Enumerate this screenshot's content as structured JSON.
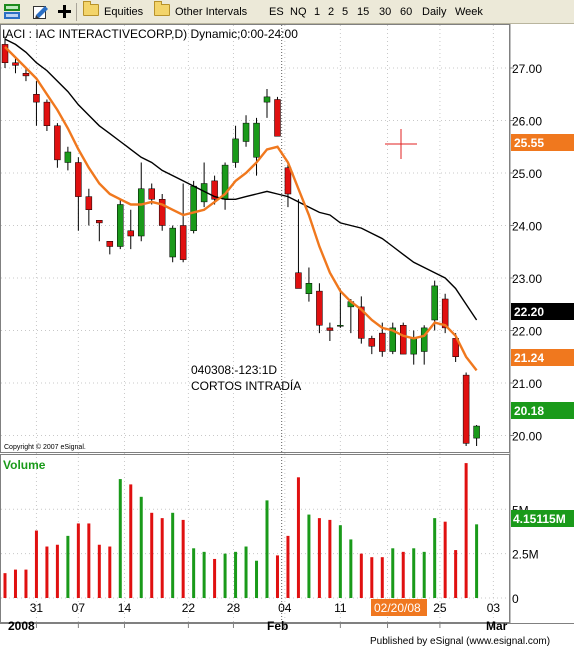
{
  "toolbar": {
    "equities_label": "Equities",
    "intervals_label": "Other Intervals",
    "items": [
      "ES",
      "NQ",
      "1",
      "2",
      "5",
      "15",
      "30",
      "60",
      "Daily",
      "Week"
    ]
  },
  "chart": {
    "title": "IACI : IAC INTERACTIVECORP,D) Dynamic;0:00-24:00",
    "copyright": "Copyright © 2007 eSignal.",
    "annotation_line1": "040308:-123:1D",
    "annotation_line2": "CORTOS INTRADÍA",
    "volume_label": "Volume",
    "published": "Published by eSignal (www.esignal.com)",
    "highlighted_date": "02/20/08",
    "price_badges": [
      {
        "value": "25.55",
        "color": "#f0781e"
      },
      {
        "value": "22.20",
        "color": "#000000"
      },
      {
        "value": "21.24",
        "color": "#f0781e"
      },
      {
        "value": "20.18",
        "color": "#1a9a1a"
      }
    ],
    "volume_badge": {
      "value": "4.15115M",
      "color": "#1a9a1a"
    },
    "up_color": "#1a9a1a",
    "down_color": "#e01010",
    "ma_fast_color": "#f0781e",
    "ma_slow_color": "#000000"
  },
  "chart_data": {
    "type": "candlestick",
    "symbol": "IACI",
    "y_ticks": [
      "20.00",
      "21.00",
      "22.00",
      "23.00",
      "24.00",
      "25.00",
      "26.00",
      "27.00"
    ],
    "ylim": [
      19.8,
      27.8
    ],
    "volume_ticks": [
      "5M",
      "2.5M",
      "0"
    ],
    "volume_ylim": [
      0,
      8
    ],
    "x_tick_labels": [
      "31",
      "07",
      "14",
      "22",
      "28",
      "04",
      "11",
      "02/20/08",
      "25",
      "03"
    ],
    "x_month_labels": [
      "2008",
      "Feb",
      "Mar"
    ],
    "candles": [
      {
        "o": 27.45,
        "h": 27.6,
        "l": 27.0,
        "c": 27.1
      },
      {
        "o": 27.1,
        "h": 27.2,
        "l": 26.9,
        "c": 27.05
      },
      {
        "o": 26.9,
        "h": 27.0,
        "l": 26.75,
        "c": 26.85
      },
      {
        "o": 26.5,
        "h": 26.75,
        "l": 25.9,
        "c": 26.35
      },
      {
        "o": 26.35,
        "h": 26.4,
        "l": 25.8,
        "c": 25.9
      },
      {
        "o": 25.9,
        "h": 25.95,
        "l": 25.1,
        "c": 25.25
      },
      {
        "o": 25.2,
        "h": 25.5,
        "l": 25.05,
        "c": 25.4
      },
      {
        "o": 25.2,
        "h": 25.3,
        "l": 23.9,
        "c": 24.55
      },
      {
        "o": 24.55,
        "h": 24.7,
        "l": 24.0,
        "c": 24.3
      },
      {
        "o": 24.1,
        "h": 24.1,
        "l": 23.7,
        "c": 24.05
      },
      {
        "o": 23.7,
        "h": 23.7,
        "l": 23.45,
        "c": 23.6
      },
      {
        "o": 23.6,
        "h": 24.5,
        "l": 23.55,
        "c": 24.4
      },
      {
        "o": 23.9,
        "h": 24.3,
        "l": 23.55,
        "c": 23.8
      },
      {
        "o": 23.8,
        "h": 25.2,
        "l": 23.7,
        "c": 24.7
      },
      {
        "o": 24.7,
        "h": 24.8,
        "l": 24.4,
        "c": 24.5
      },
      {
        "o": 24.5,
        "h": 24.6,
        "l": 23.9,
        "c": 24.0
      },
      {
        "o": 23.4,
        "h": 24.0,
        "l": 23.3,
        "c": 23.95
      },
      {
        "o": 24.0,
        "h": 24.8,
        "l": 23.3,
        "c": 23.35
      },
      {
        "o": 23.9,
        "h": 24.85,
        "l": 23.85,
        "c": 24.75
      },
      {
        "o": 24.45,
        "h": 25.2,
        "l": 24.35,
        "c": 24.8
      },
      {
        "o": 24.85,
        "h": 24.95,
        "l": 24.4,
        "c": 24.5
      },
      {
        "o": 24.5,
        "h": 25.2,
        "l": 24.3,
        "c": 25.15
      },
      {
        "o": 25.2,
        "h": 25.9,
        "l": 25.1,
        "c": 25.65
      },
      {
        "o": 25.6,
        "h": 26.1,
        "l": 25.5,
        "c": 25.95
      },
      {
        "o": 25.3,
        "h": 26.05,
        "l": 24.95,
        "c": 25.95
      },
      {
        "o": 26.35,
        "h": 26.6,
        "l": 26.05,
        "c": 26.45
      },
      {
        "o": 26.4,
        "h": 26.45,
        "l": 25.7,
        "c": 25.7
      },
      {
        "o": 25.1,
        "h": 25.2,
        "l": 24.35,
        "c": 24.6
      },
      {
        "o": 23.1,
        "h": 24.5,
        "l": 22.8,
        "c": 22.8
      },
      {
        "o": 22.7,
        "h": 23.2,
        "l": 22.55,
        "c": 22.9
      },
      {
        "o": 22.75,
        "h": 22.9,
        "l": 21.95,
        "c": 22.1
      },
      {
        "o": 22.05,
        "h": 22.15,
        "l": 21.8,
        "c": 22.0
      },
      {
        "o": 22.1,
        "h": 22.8,
        "l": 22.05,
        "c": 22.1
      },
      {
        "o": 22.45,
        "h": 22.6,
        "l": 21.95,
        "c": 22.55
      },
      {
        "o": 22.45,
        "h": 22.65,
        "l": 21.75,
        "c": 21.85
      },
      {
        "o": 21.85,
        "h": 21.9,
        "l": 21.55,
        "c": 21.7
      },
      {
        "o": 21.95,
        "h": 22.15,
        "l": 21.5,
        "c": 21.6
      },
      {
        "o": 21.6,
        "h": 22.15,
        "l": 21.55,
        "c": 22.05
      },
      {
        "o": 22.1,
        "h": 22.15,
        "l": 21.55,
        "c": 21.55
      },
      {
        "o": 21.55,
        "h": 22.0,
        "l": 21.35,
        "c": 21.85
      },
      {
        "o": 21.6,
        "h": 22.1,
        "l": 21.35,
        "c": 22.05
      },
      {
        "o": 22.2,
        "h": 22.95,
        "l": 22.0,
        "c": 22.85
      },
      {
        "o": 22.6,
        "h": 22.7,
        "l": 21.95,
        "c": 22.05
      },
      {
        "o": 21.85,
        "h": 21.95,
        "l": 21.4,
        "c": 21.5
      },
      {
        "o": 21.15,
        "h": 21.2,
        "l": 19.8,
        "c": 19.85
      },
      {
        "o": 19.95,
        "h": 20.2,
        "l": 19.8,
        "c": 20.18
      }
    ],
    "volume": [
      1.4,
      1.6,
      1.6,
      3.8,
      2.9,
      3.0,
      3.5,
      4.2,
      4.2,
      3.0,
      2.9,
      6.7,
      6.4,
      5.7,
      4.8,
      4.5,
      4.8,
      4.4,
      2.8,
      2.6,
      2.2,
      2.5,
      2.6,
      2.9,
      2.1,
      5.5,
      2.4,
      3.5,
      6.8,
      4.7,
      4.5,
      4.4,
      4.1,
      3.3,
      2.5,
      2.3,
      2.3,
      2.8,
      2.6,
      2.8,
      2.6,
      4.5,
      4.3,
      2.7,
      7.6,
      4.15
    ],
    "ma_fast": [
      27.4,
      27.2,
      27.0,
      26.8,
      26.5,
      26.2,
      25.85,
      25.45,
      25.1,
      24.8,
      24.6,
      24.5,
      24.4,
      24.4,
      24.45,
      24.4,
      24.3,
      24.2,
      24.25,
      24.3,
      24.45,
      24.6,
      24.85,
      25.0,
      25.2,
      25.45,
      25.5,
      25.2,
      24.7,
      24.2,
      23.6,
      23.1,
      22.75,
      22.55,
      22.4,
      22.2,
      22.05,
      22.0,
      21.9,
      21.85,
      21.9,
      22.15,
      22.1,
      21.9,
      21.5,
      21.24
    ],
    "ma_slow": [
      27.55,
      27.45,
      27.3,
      27.1,
      26.95,
      26.75,
      26.55,
      26.3,
      26.1,
      25.9,
      25.75,
      25.6,
      25.45,
      25.3,
      25.2,
      25.05,
      24.95,
      24.85,
      24.75,
      24.65,
      24.55,
      24.5,
      24.5,
      24.55,
      24.6,
      24.65,
      24.6,
      24.55,
      24.45,
      24.35,
      24.25,
      24.2,
      24.05,
      24.0,
      23.95,
      23.85,
      23.75,
      23.6,
      23.45,
      23.3,
      23.2,
      23.1,
      23.0,
      22.8,
      22.5,
      22.2
    ]
  }
}
